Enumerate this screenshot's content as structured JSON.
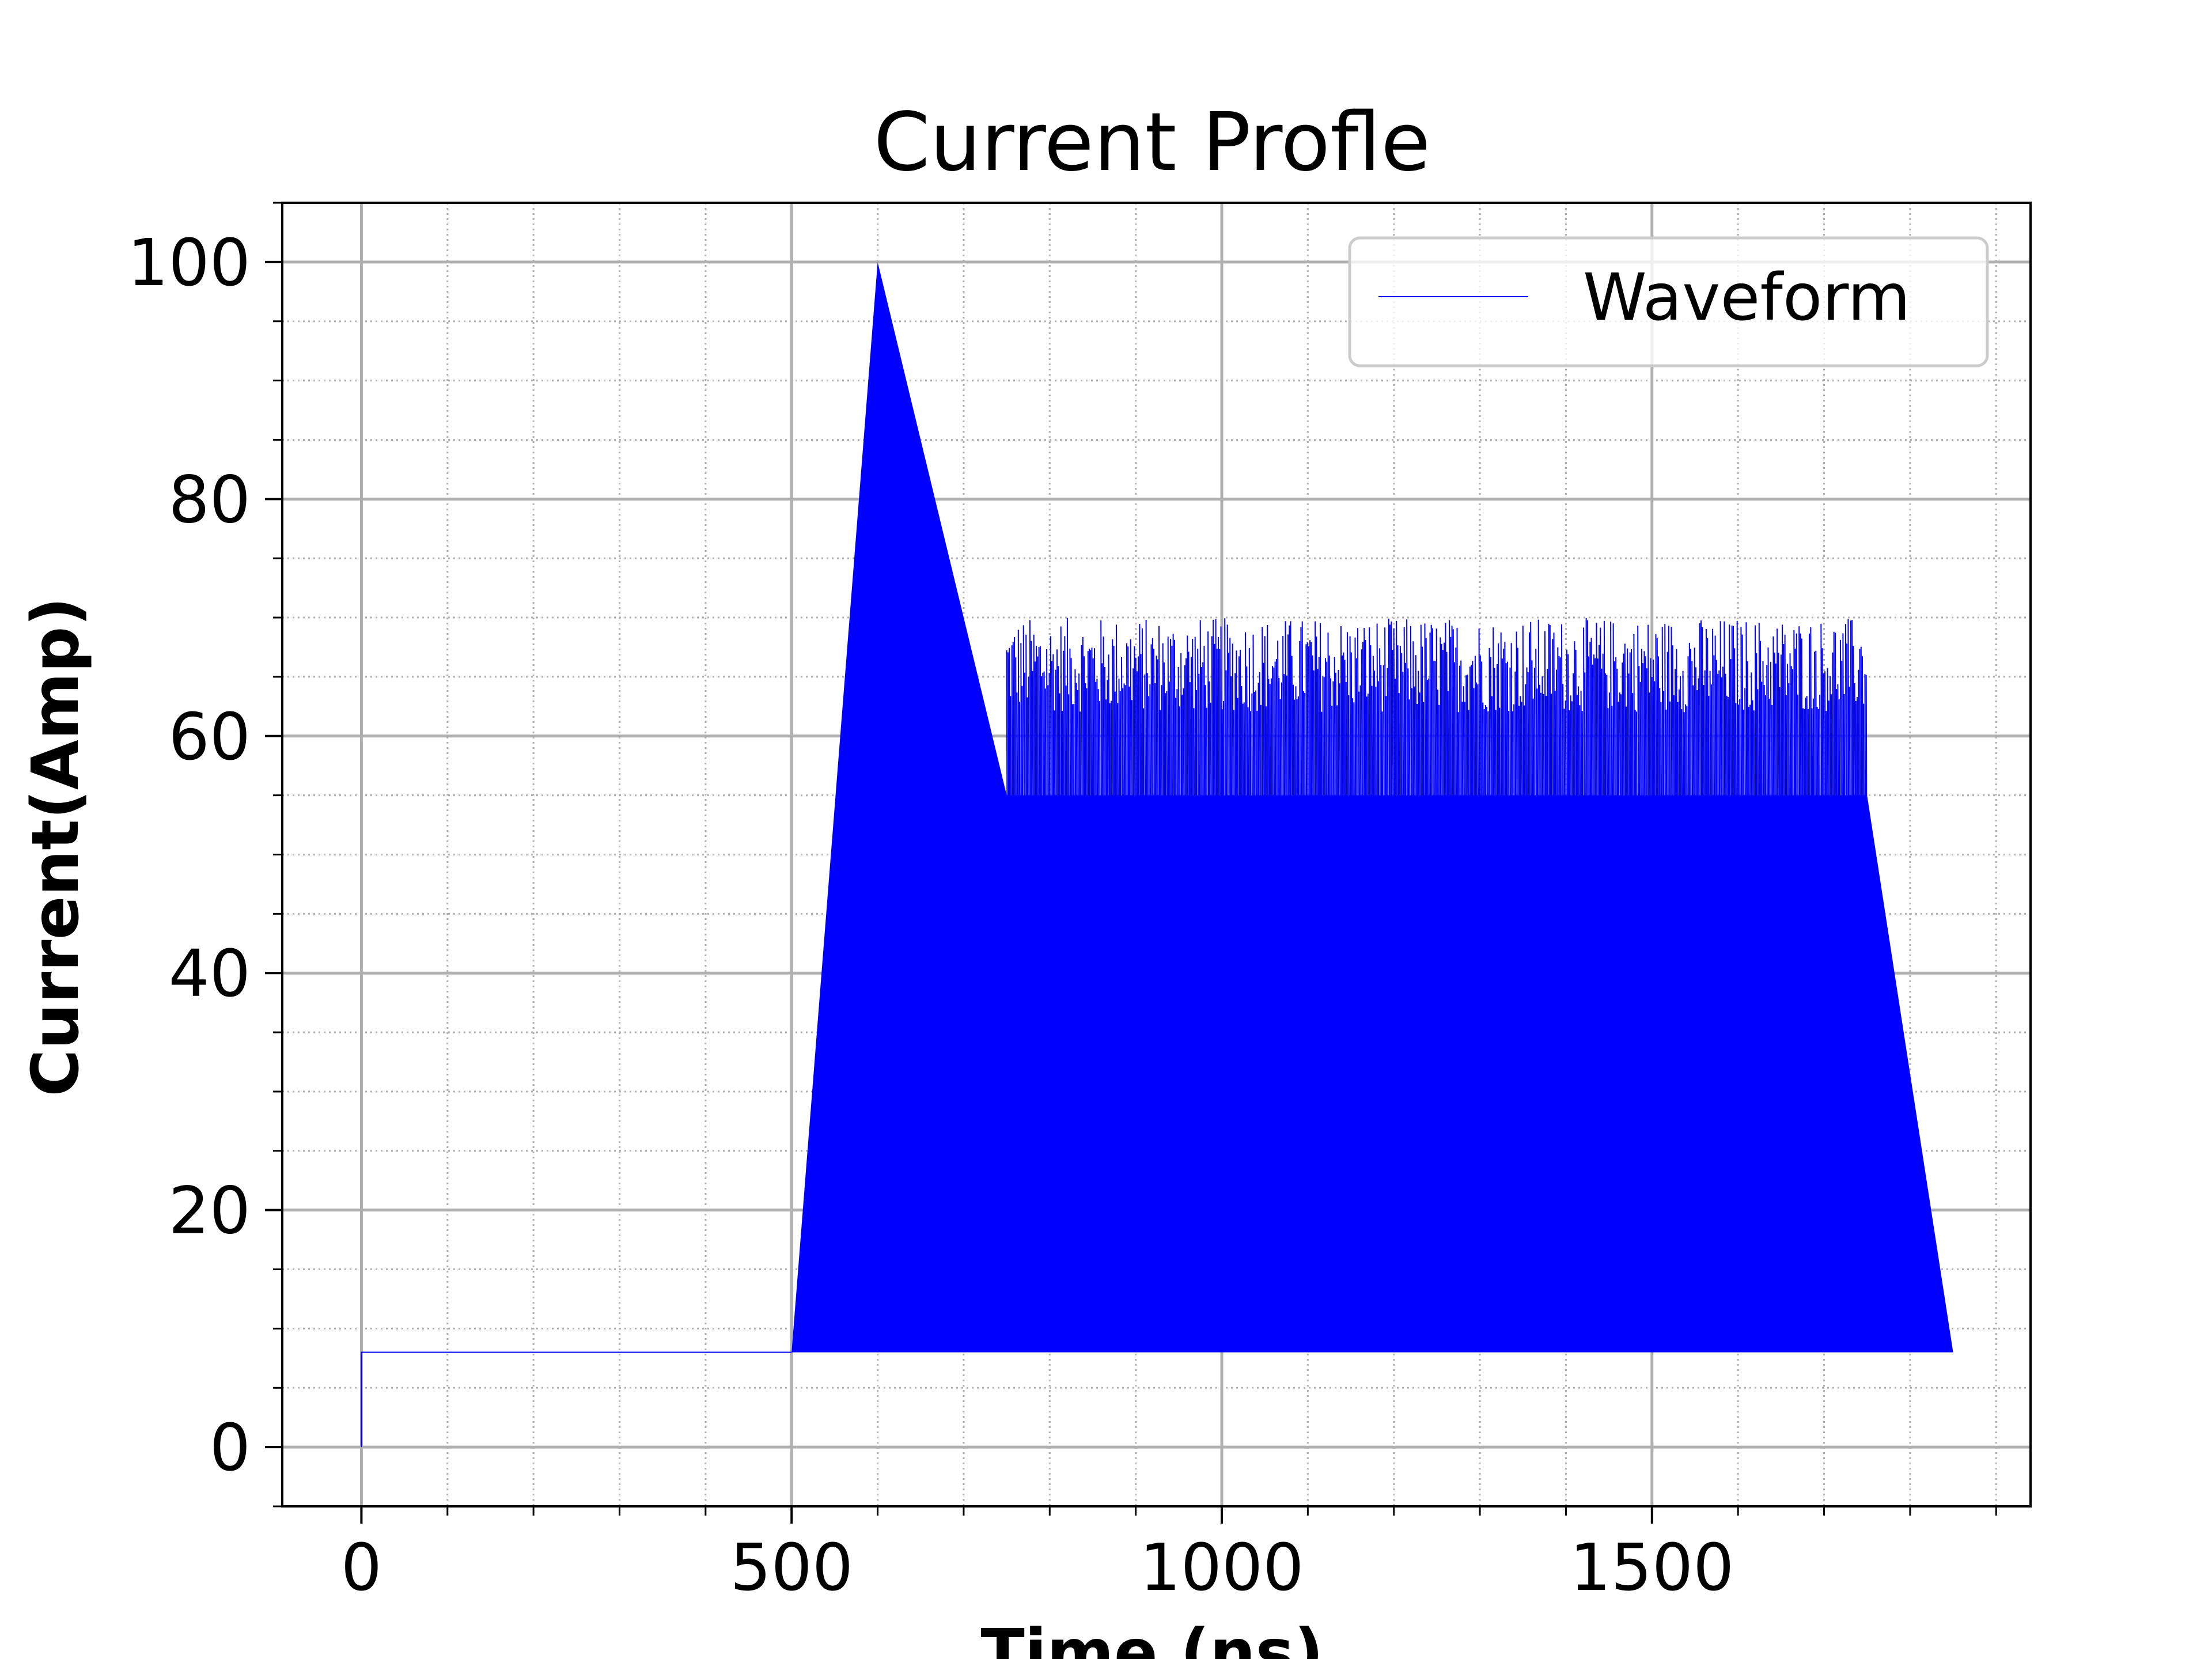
{
  "chart_data": {
    "type": "line",
    "title": "Current Profle",
    "xlabel": "Time (ns)",
    "ylabel": "Current(Amp)",
    "xlim": [
      -92,
      1940
    ],
    "ylim": [
      -5,
      105
    ],
    "x_ticks": [
      0,
      500,
      1000,
      1500
    ],
    "x_tick_labels": [
      "0",
      "500",
      "1000",
      "1500"
    ],
    "y_ticks": [
      0,
      20,
      40,
      60,
      80,
      100
    ],
    "y_tick_labels": [
      "0",
      "20",
      "40",
      "60",
      "80",
      "100"
    ],
    "x_minor_step": 100,
    "y_minor_step": 5,
    "grid": true,
    "minor_grid": true,
    "legend_position": "upper right",
    "series": [
      {
        "name": "Waveform",
        "color": "#0000ff",
        "baseline_current": 8,
        "envelope": {
          "x": [
            0,
            0,
            500,
            600,
            750,
            1750,
            1850
          ],
          "y": [
            0,
            8,
            8,
            100,
            55,
            55,
            8
          ]
        },
        "ripple": {
          "x_start": 750,
          "x_end": 1750,
          "peak_range": [
            62,
            70
          ],
          "trough_range": [
            45,
            52
          ]
        }
      }
    ]
  }
}
